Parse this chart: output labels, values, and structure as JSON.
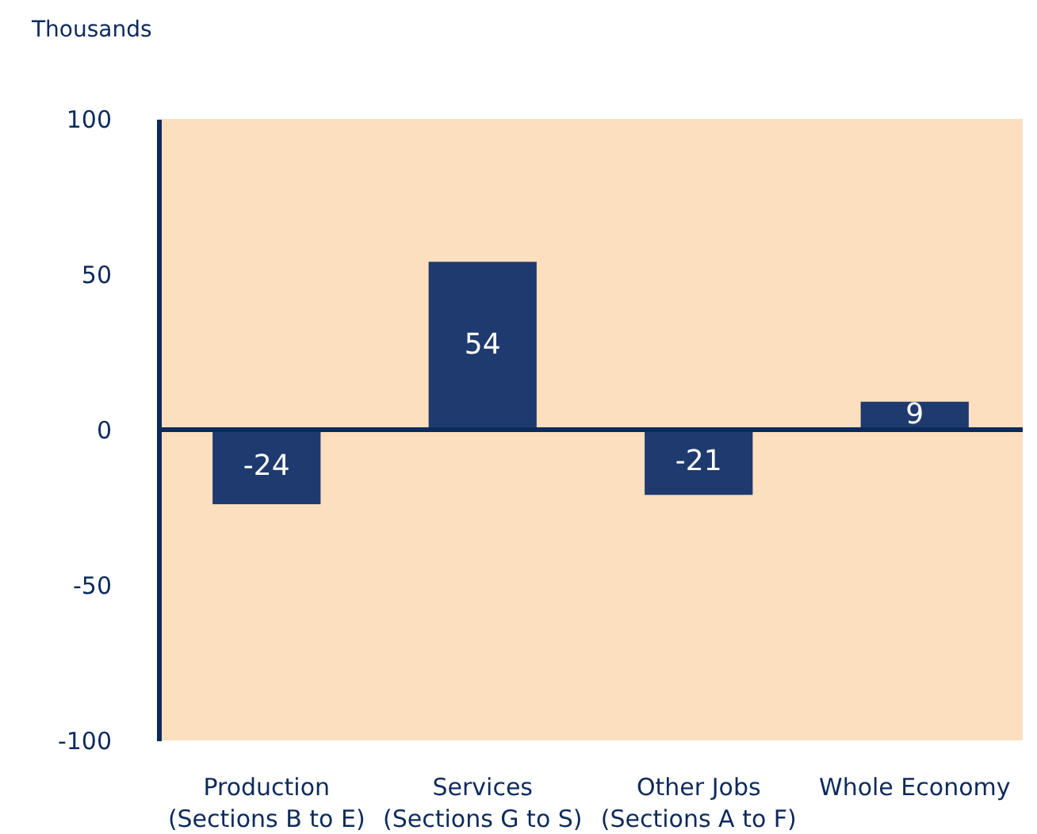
{
  "chart_data": {
    "type": "bar",
    "ylabel": "Thousands",
    "categories": [
      "Production\n(Sections B to E)",
      "Services\n(Sections G to S)",
      "Other Jobs\n(Sections A to F)",
      "Whole Economy"
    ],
    "values": [
      -24,
      54,
      -21,
      9
    ],
    "color": "#1f3a6e",
    "ylim": [
      -100,
      100
    ],
    "yticks": [
      -100,
      -50,
      0,
      50,
      100
    ],
    "grid": false,
    "data_labels": true
  }
}
